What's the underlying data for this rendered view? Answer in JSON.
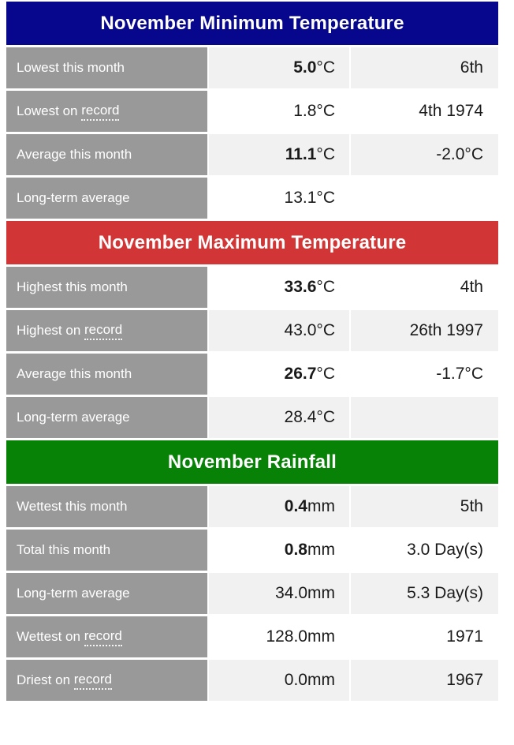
{
  "table": {
    "sections": [
      {
        "title": "November Minimum Temperature",
        "accent": "#07078d",
        "rows": [
          {
            "label": "Lowest this month",
            "term": "",
            "value": "5.0",
            "unit": "°C",
            "emphasis": true,
            "detail": "6th"
          },
          {
            "label": "Lowest on ",
            "term": "record",
            "value": "1.8",
            "unit": "°C",
            "emphasis": false,
            "detail": "4th 1974"
          },
          {
            "label": "Average this month",
            "term": "",
            "value": "11.1",
            "unit": "°C",
            "emphasis": true,
            "detail": "-2.0°C"
          },
          {
            "label": "Long-term average",
            "term": "",
            "value": "13.1",
            "unit": "°C",
            "emphasis": false,
            "detail": ""
          }
        ]
      },
      {
        "title": "November Maximum Temperature",
        "accent": "#d23535",
        "rows": [
          {
            "label": "Highest this month",
            "term": "",
            "value": "33.6",
            "unit": "°C",
            "emphasis": true,
            "detail": "4th"
          },
          {
            "label": "Highest on ",
            "term": "record",
            "value": "43.0",
            "unit": "°C",
            "emphasis": false,
            "detail": "26th 1997"
          },
          {
            "label": "Average this month",
            "term": "",
            "value": "26.7",
            "unit": "°C",
            "emphasis": true,
            "detail": "-1.7°C"
          },
          {
            "label": "Long-term average",
            "term": "",
            "value": "28.4",
            "unit": "°C",
            "emphasis": false,
            "detail": ""
          }
        ]
      },
      {
        "title": "November Rainfall",
        "accent": "#078207",
        "rows": [
          {
            "label": "Wettest this month",
            "term": "",
            "value": "0.4",
            "unit": "mm",
            "emphasis": true,
            "detail": "5th"
          },
          {
            "label": "Total this month",
            "term": "",
            "value": "0.8",
            "unit": "mm",
            "emphasis": true,
            "detail": "3.0 Day(s)"
          },
          {
            "label": "Long-term average",
            "term": "",
            "value": "34.0",
            "unit": "mm",
            "emphasis": false,
            "detail": "5.3 Day(s)"
          },
          {
            "label": "Wettest on ",
            "term": "record",
            "value": "128.0",
            "unit": "mm",
            "emphasis": false,
            "detail": "1971"
          },
          {
            "label": "Driest on ",
            "term": "record",
            "value": "0.0",
            "unit": "mm",
            "emphasis": false,
            "detail": "1967"
          }
        ]
      }
    ],
    "colors": {
      "label_cell": "#999999",
      "row_shade": "#f1f1f1",
      "min_temp_header": "#07078d",
      "max_temp_header": "#d23535",
      "rainfall_header": "#078207"
    }
  }
}
